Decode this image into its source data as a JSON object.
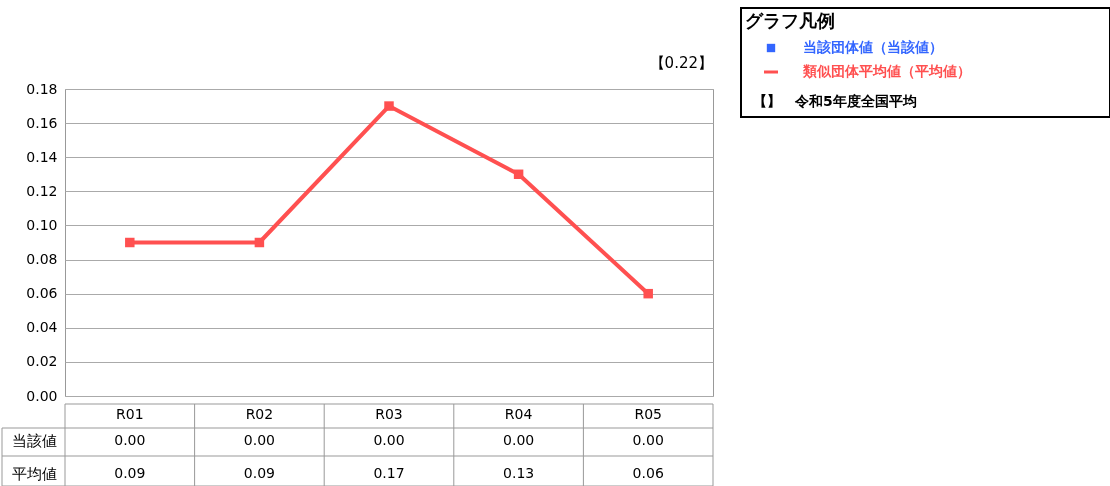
{
  "chart_data": {
    "type": "line",
    "legend_title": "グラフ凡例",
    "categories": [
      "R01",
      "R02",
      "R03",
      "R04",
      "R05"
    ],
    "series": [
      {
        "name": "当該団体値（当該値）",
        "color": "#3366ff",
        "type": "bar",
        "values": [
          0.0,
          0.0,
          0.0,
          0.0,
          0.0
        ],
        "value_labels": [
          "0.00",
          "0.00",
          "0.00",
          "0.00",
          "0.00"
        ]
      },
      {
        "name": "類似団体平均値（平均値）",
        "color": "#ff5050",
        "values": [
          0.09,
          0.09,
          0.17,
          0.13,
          0.06
        ],
        "value_labels": [
          "0.09",
          "0.09",
          "0.17",
          "0.13",
          "0.06"
        ]
      }
    ],
    "ylim": [
      0,
      0.18
    ],
    "yticks": [
      {
        "value": 0,
        "label": "0.00"
      },
      {
        "value": 0.02,
        "label": "0.02"
      },
      {
        "value": 0.04,
        "label": "0.04"
      },
      {
        "value": 0.06,
        "label": "0.06"
      },
      {
        "value": 0.08,
        "label": "0.08"
      },
      {
        "value": 0.1,
        "label": "0.10"
      },
      {
        "value": 0.12,
        "label": "0.12"
      },
      {
        "value": 0.14,
        "label": "0.14"
      },
      {
        "value": 0.16,
        "label": "0.16"
      },
      {
        "value": 0.18,
        "label": "0.18"
      }
    ],
    "annotations": [
      "【0.22】",
      "【】　令和5年度全国平均",
      "当該値",
      "平均値"
    ],
    "grid": "y",
    "data_labels": true,
    "legend": "top right",
    "marker": "square"
  }
}
